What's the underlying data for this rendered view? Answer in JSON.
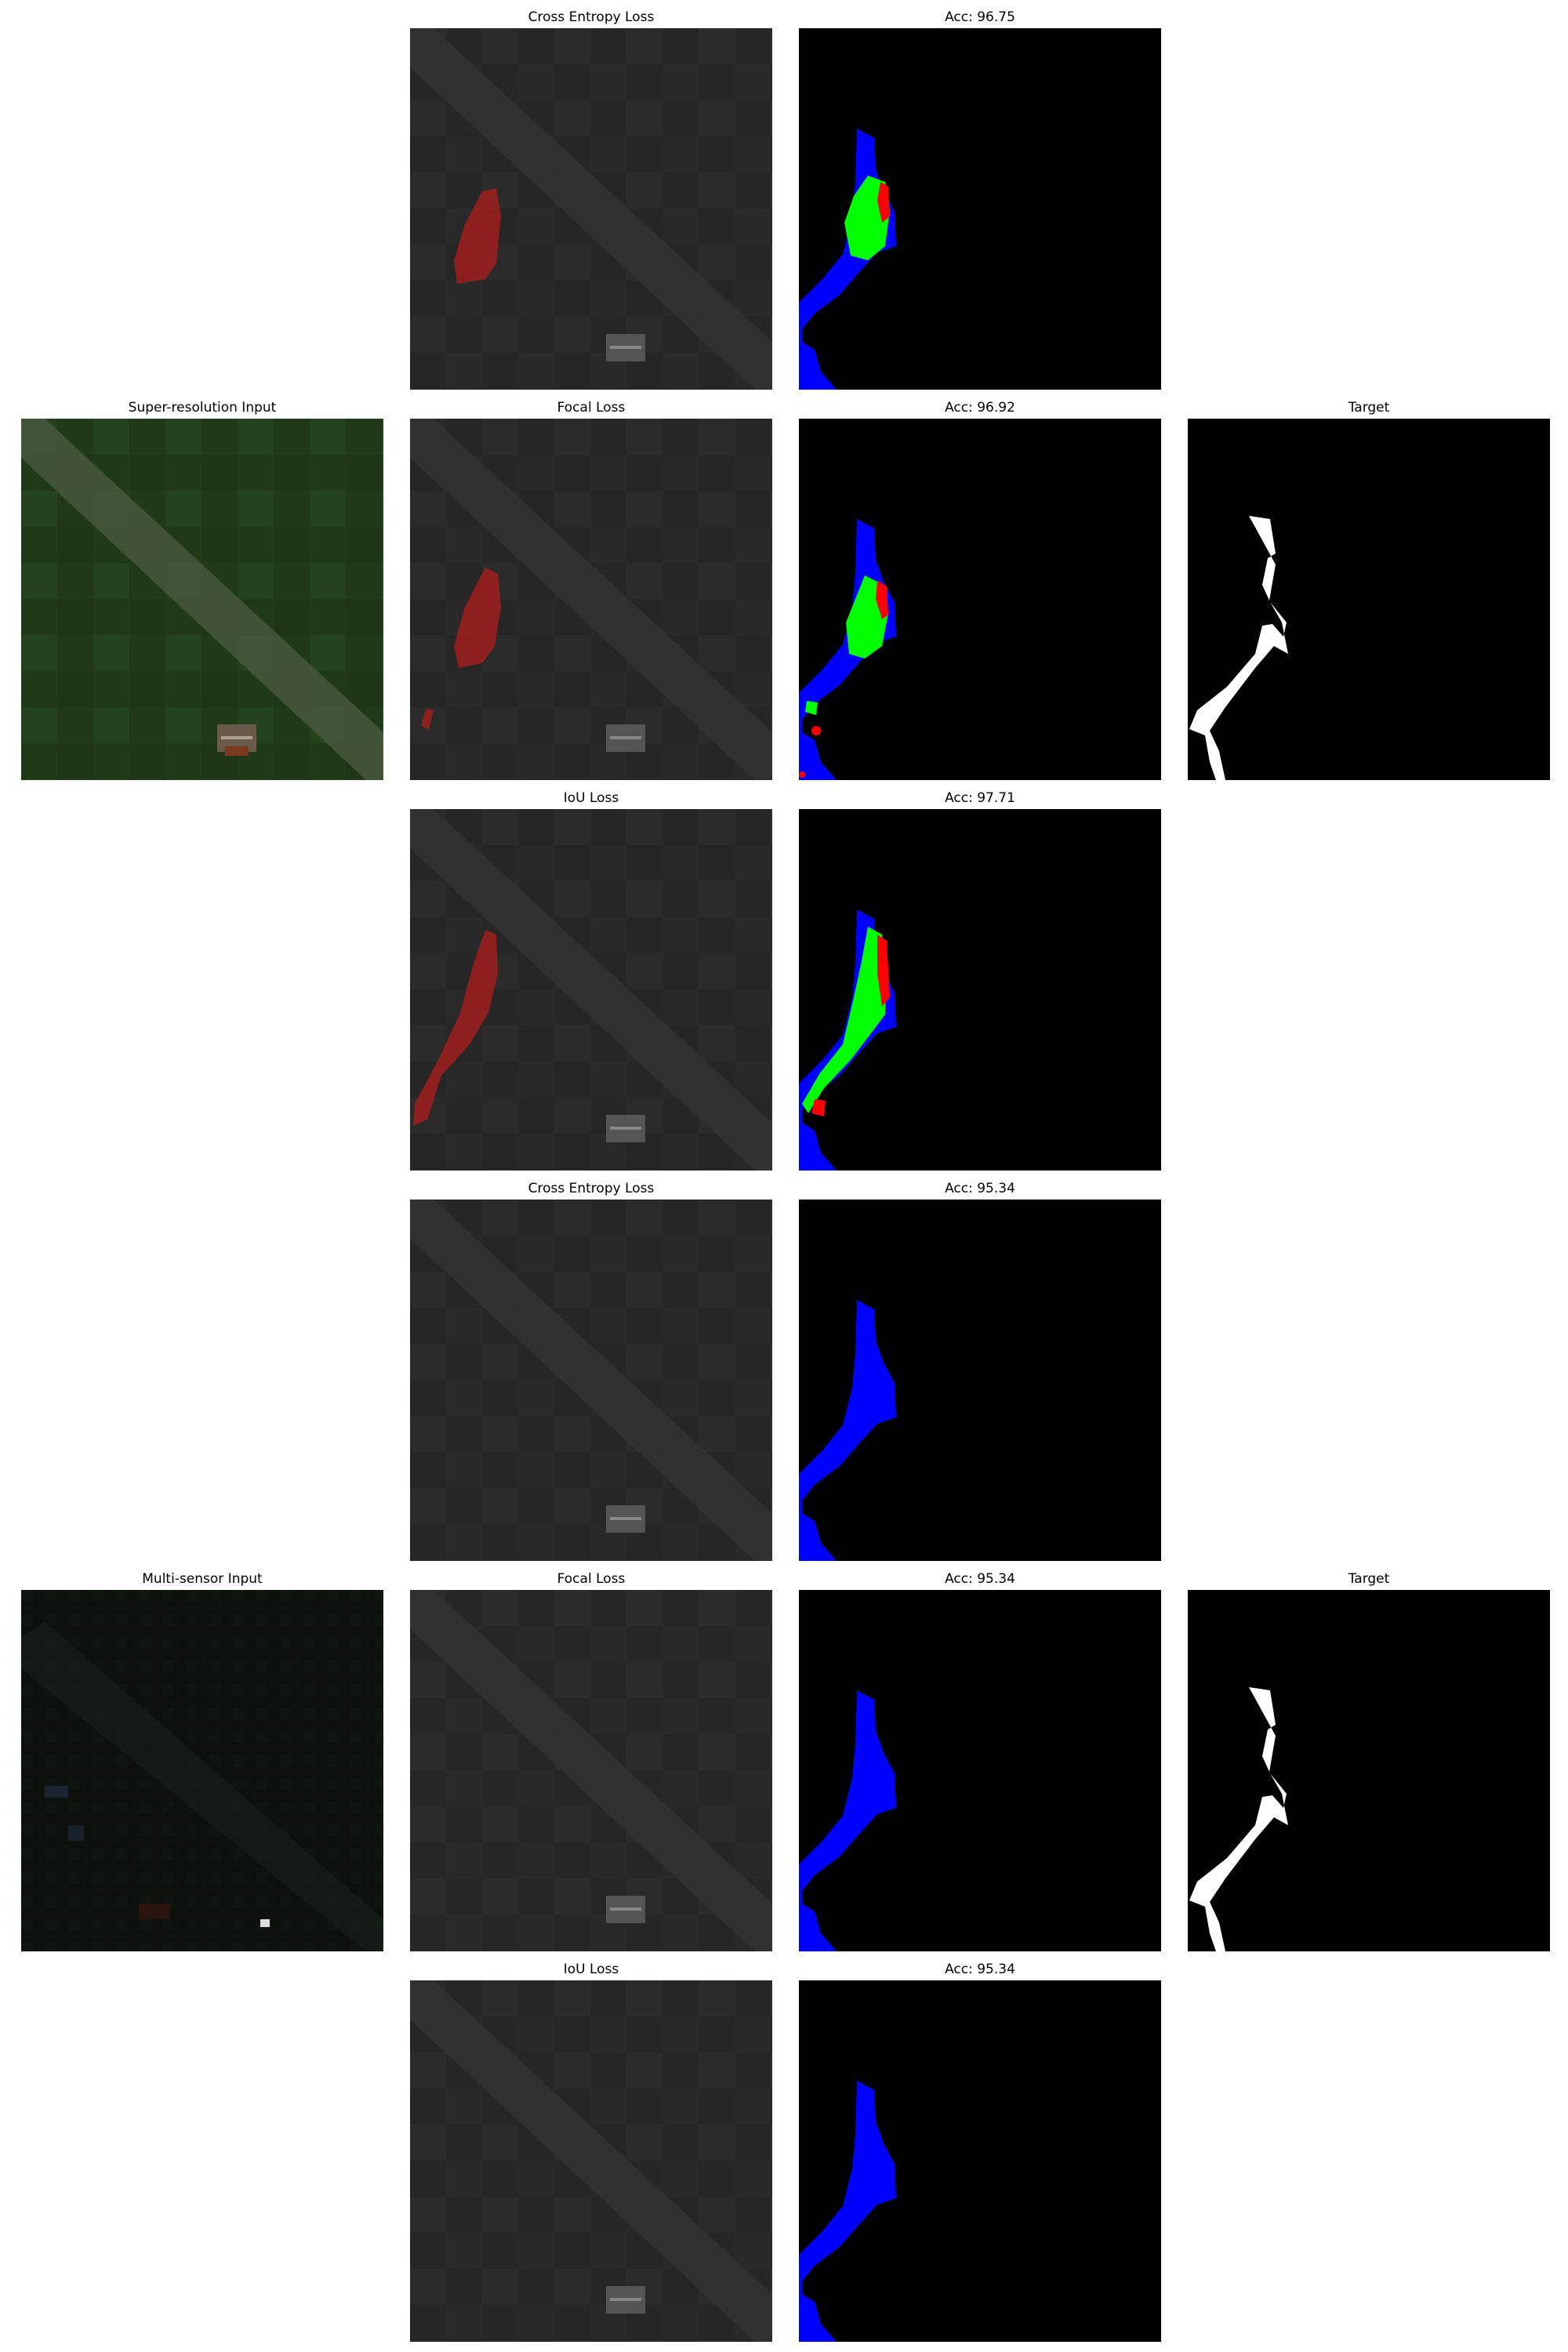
{
  "rows": [
    {
      "input_title": "",
      "loss_title": "Cross Entropy Loss",
      "acc_title": "Acc: 96.75",
      "target_title": ""
    },
    {
      "input_title": "Super-resolution Input",
      "loss_title": "Focal Loss",
      "acc_title": "Acc: 96.92",
      "target_title": "Target"
    },
    {
      "input_title": "",
      "loss_title": "IoU Loss",
      "acc_title": "Acc: 97.71",
      "target_title": ""
    },
    {
      "input_title": "",
      "loss_title": "Cross Entropy Loss",
      "acc_title": "Acc: 95.34",
      "target_title": ""
    },
    {
      "input_title": "Multi-sensor Input",
      "loss_title": "Focal Loss",
      "acc_title": "Acc: 95.34",
      "target_title": "Target"
    },
    {
      "input_title": "",
      "loss_title": "IoU Loss",
      "acc_title": "Acc: 95.34",
      "target_title": ""
    }
  ],
  "colors": {
    "true_positive": "#00ff00",
    "false_positive": "#ff0000",
    "false_negative": "#0000ff",
    "background": "#000000",
    "target_mask": "#ffffff",
    "prediction_overlay": "#a01e1e"
  }
}
